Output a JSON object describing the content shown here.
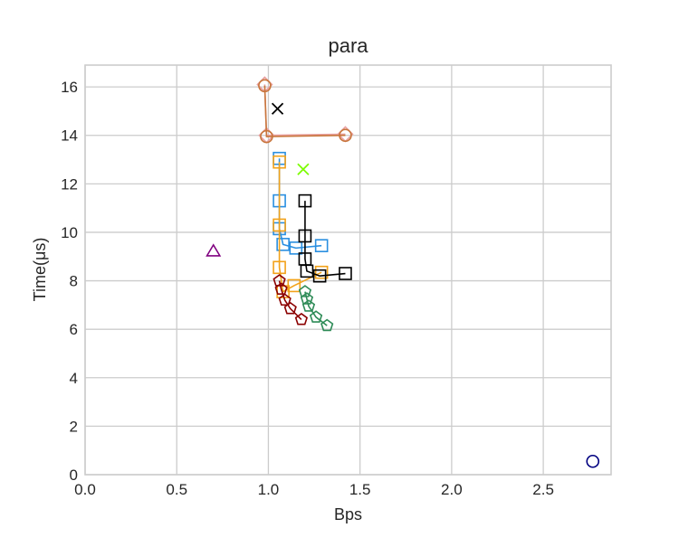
{
  "chart_data": {
    "type": "scatter",
    "title": "para",
    "xlabel": "Bps",
    "ylabel": "Time(μs)",
    "xlim": [
      0.0,
      2.87
    ],
    "ylim": [
      0,
      16.9
    ],
    "xticks": [
      0.0,
      0.5,
      1.0,
      1.5,
      2.0,
      2.5
    ],
    "xtick_labels": [
      "0.0",
      "0.5",
      "1.0",
      "1.5",
      "2.0",
      "2.5"
    ],
    "yticks": [
      0,
      2,
      4,
      6,
      8,
      10,
      12,
      14,
      16
    ],
    "ytick_labels": [
      "0",
      "2",
      "4",
      "6",
      "8",
      "10",
      "12",
      "14",
      "16"
    ],
    "grid": true,
    "series": [
      {
        "color": "#e8a0a0",
        "marker": "diamond",
        "connected": true,
        "x": [
          0.98,
          0.99,
          1.42
        ],
        "y": [
          16.1,
          14.0,
          14.05
        ]
      },
      {
        "color": "#c8763c",
        "marker": "circle",
        "connected": true,
        "x": [
          0.98,
          0.99,
          1.42
        ],
        "y": [
          16.05,
          13.95,
          14.0
        ]
      },
      {
        "color": "#000000",
        "marker": "x",
        "connected": false,
        "x": [
          1.05
        ],
        "y": [
          15.1
        ]
      },
      {
        "color": "#7cfc00",
        "marker": "x",
        "connected": false,
        "x": [
          1.19
        ],
        "y": [
          12.6
        ]
      },
      {
        "color": "#2a8fe0",
        "marker": "square",
        "connected": true,
        "x": [
          1.06,
          1.06,
          1.06,
          1.08,
          1.15,
          1.29
        ],
        "y": [
          13.05,
          11.3,
          10.15,
          9.5,
          9.35,
          9.45
        ]
      },
      {
        "color": "#f2a21a",
        "marker": "square",
        "connected": true,
        "x": [
          1.06,
          1.06,
          1.06,
          1.08,
          1.14,
          1.29
        ],
        "y": [
          12.9,
          10.3,
          8.55,
          7.55,
          7.8,
          8.35
        ]
      },
      {
        "color": "#000000",
        "marker": "square",
        "connected": true,
        "x": [
          1.2,
          1.2,
          1.2,
          1.21,
          1.28,
          1.42
        ],
        "y": [
          11.3,
          9.85,
          8.9,
          8.4,
          8.2,
          8.3
        ]
      },
      {
        "color": "#800080",
        "marker": "triangle",
        "connected": false,
        "x": [
          0.7
        ],
        "y": [
          9.2
        ]
      },
      {
        "color": "#8b0000",
        "marker": "pentagon",
        "connected": true,
        "x": [
          1.06,
          1.07,
          1.09,
          1.12,
          1.18
        ],
        "y": [
          8.0,
          7.65,
          7.2,
          6.85,
          6.4
        ]
      },
      {
        "color": "#2e8b57",
        "marker": "pentagon",
        "connected": true,
        "x": [
          1.2,
          1.21,
          1.22,
          1.26,
          1.32
        ],
        "y": [
          7.55,
          7.25,
          6.95,
          6.5,
          6.15
        ]
      },
      {
        "color": "#000080",
        "marker": "circle",
        "connected": false,
        "x": [
          2.77
        ],
        "y": [
          0.55
        ]
      }
    ]
  }
}
